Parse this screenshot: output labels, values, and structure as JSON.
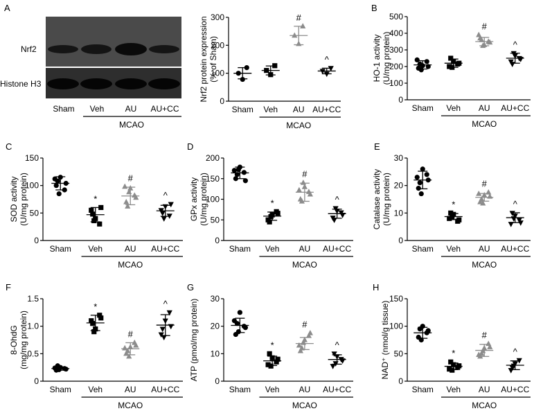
{
  "figure": {
    "western_blot": {
      "panel_letter": "A",
      "band_labels": [
        "Nrf2",
        "Histone H3"
      ],
      "lane_labels": [
        "Sham",
        "Veh",
        "AU",
        "AU+CC"
      ],
      "group_label": "MCAO"
    }
  },
  "colors": {
    "sham": "#000000",
    "veh": "#000000",
    "au": "#8c8c8c",
    "aucc": "#000000"
  },
  "chart_data": [
    {
      "id": "A2",
      "panel": "",
      "type": "scatter",
      "ylabel": "Nrf2 protein expression\n(% of Sham)",
      "ylim": [
        0,
        300
      ],
      "yticks": [
        0,
        100,
        200,
        300
      ],
      "categories": [
        "Sham",
        "Veh",
        "AU",
        "AU+CC"
      ],
      "group_label": "MCAO",
      "markers": [
        "circle",
        "square",
        "triangle-up",
        "triangle-down"
      ],
      "points": [
        [
          100,
          78,
          120
        ],
        [
          110,
          95,
          127
        ],
        [
          235,
          205,
          268
        ],
        [
          108,
          98,
          118
        ]
      ],
      "mean": [
        100,
        110,
        235,
        108
      ],
      "sd": [
        20,
        16,
        33,
        10
      ],
      "annotations": [
        "",
        "",
        "#",
        "^"
      ]
    },
    {
      "id": "B",
      "panel": "B",
      "type": "scatter",
      "ylabel": "HO-1 activity\n(U/mg protein)",
      "ylim": [
        0,
        500
      ],
      "yticks": [
        0,
        100,
        200,
        300,
        400,
        500
      ],
      "categories": [
        "Sham",
        "Veh",
        "AU",
        "AU+CC"
      ],
      "group_label": "MCAO",
      "markers": [
        "circle",
        "square",
        "triangle-up",
        "triangle-down"
      ],
      "points": [
        [
          190,
          205,
          230,
          215,
          180,
          200,
          240
        ],
        [
          200,
          230,
          215,
          250,
          195,
          220
        ],
        [
          370,
          330,
          350,
          360,
          325,
          345,
          390
        ],
        [
          230,
          265,
          250,
          215,
          280,
          245
        ]
      ],
      "mean": [
        210,
        220,
        350,
        250
      ],
      "sd": [
        25,
        25,
        25,
        30
      ],
      "annotations": [
        "",
        "",
        "#",
        "^"
      ]
    },
    {
      "id": "C",
      "panel": "C",
      "type": "scatter",
      "ylabel": "SOD activity\n(U/mg protein)",
      "ylim": [
        0,
        150
      ],
      "yticks": [
        0,
        50,
        100,
        150
      ],
      "categories": [
        "Sham",
        "Veh",
        "AU",
        "AU+CC"
      ],
      "group_label": "MCAO",
      "markers": [
        "circle",
        "square",
        "triangle-up",
        "triangle-down"
      ],
      "points": [
        [
          100,
          115,
          92,
          108,
          85,
          104,
          112
        ],
        [
          55,
          40,
          30,
          48,
          36,
          60
        ],
        [
          70,
          95,
          82,
          62,
          88,
          78,
          98
        ],
        [
          55,
          62,
          45,
          50,
          40,
          66
        ]
      ],
      "mean": [
        104,
        47,
        81,
        54
      ],
      "sd": [
        12,
        13,
        16,
        10
      ],
      "annotations": [
        "",
        "*",
        "#",
        "^"
      ]
    },
    {
      "id": "D",
      "panel": "D",
      "type": "scatter",
      "ylabel": "GPx activity\n(U/mg protein)",
      "ylim": [
        0,
        200
      ],
      "yticks": [
        0,
        50,
        100,
        150,
        200
      ],
      "categories": [
        "Sham",
        "Veh",
        "AU",
        "AU+CC"
      ],
      "group_label": "MCAO",
      "markers": [
        "circle",
        "square",
        "triangle-up",
        "triangle-down"
      ],
      "points": [
        [
          150,
          178,
          165,
          160,
          172,
          145,
          170
        ],
        [
          50,
          62,
          70,
          45,
          58,
          66
        ],
        [
          100,
          130,
          118,
          95,
          140,
          112,
          122
        ],
        [
          55,
          72,
          68,
          50,
          78,
          62
        ]
      ],
      "mean": [
        164,
        59,
        117,
        65
      ],
      "sd": [
        14,
        10,
        22,
        11
      ],
      "annotations": [
        "",
        "*",
        "#",
        "^"
      ]
    },
    {
      "id": "E",
      "panel": "E",
      "type": "scatter",
      "ylabel": "Catalase activity\n(U/mg protein)",
      "ylim": [
        0,
        30
      ],
      "yticks": [
        0,
        10,
        20,
        30
      ],
      "categories": [
        "Sham",
        "Veh",
        "AU",
        "AU+CC"
      ],
      "group_label": "MCAO",
      "markers": [
        "circle",
        "square",
        "triangle-up",
        "triangle-down"
      ],
      "points": [
        [
          19,
          26,
          24,
          21,
          17,
          22,
          23
        ],
        [
          8,
          9.5,
          7,
          10,
          8.5,
          7.5
        ],
        [
          14,
          16.5,
          17.5,
          15,
          13.5,
          16,
          17
        ],
        [
          6,
          9,
          7.5,
          10,
          8,
          6.5
        ]
      ],
      "mean": [
        22,
        8.7,
        15.7,
        8.3
      ],
      "sd": [
        3.2,
        1.1,
        1.4,
        1.8
      ],
      "annotations": [
        "",
        "*",
        "#",
        "^"
      ]
    },
    {
      "id": "F",
      "panel": "F",
      "type": "scatter",
      "ylabel": "8-OhdG\n(mg/mg protein)",
      "ylim": [
        0,
        1.5
      ],
      "yticks": [
        0,
        0.5,
        1.0,
        1.5
      ],
      "ytick_labels": [
        "0",
        "0.5",
        "1.0",
        "1.5"
      ],
      "categories": [
        "Sham",
        "Veh",
        "AU",
        "AU+CC"
      ],
      "group_label": "MCAO",
      "markers": [
        "circle",
        "square",
        "triangle-up",
        "triangle-down"
      ],
      "points": [
        [
          0.2,
          0.25,
          0.23,
          0.28,
          0.21,
          0.22,
          0.24
        ],
        [
          1.1,
          0.95,
          1.2,
          1.05,
          0.9,
          1.15
        ],
        [
          0.5,
          0.62,
          0.7,
          0.55,
          0.45,
          0.65,
          0.6
        ],
        [
          0.85,
          1.1,
          1.25,
          0.95,
          0.8,
          1.0
        ]
      ],
      "mean": [
        0.23,
        1.06,
        0.59,
        1.02
      ],
      "sd": [
        0.03,
        0.14,
        0.11,
        0.19
      ],
      "annotations": [
        "",
        "*",
        "#",
        "^"
      ]
    },
    {
      "id": "G",
      "panel": "G",
      "type": "scatter",
      "ylabel": "ATP (pmol/mg protein)",
      "ylim": [
        0,
        30
      ],
      "yticks": [
        0,
        10,
        20,
        30
      ],
      "categories": [
        "Sham",
        "Veh",
        "AU",
        "AU+CC"
      ],
      "group_label": "MCAO",
      "markers": [
        "circle",
        "square",
        "triangle-up",
        "triangle-down"
      ],
      "points": [
        [
          17,
          25,
          20,
          21,
          18,
          19.5,
          22
        ],
        [
          6,
          8.5,
          7,
          10,
          5.5,
          8
        ],
        [
          11,
          15,
          16.5,
          12,
          14,
          17.5,
          13
        ],
        [
          5.5,
          9,
          8,
          10,
          6.5,
          7.5
        ]
      ],
      "mean": [
        20.3,
        7.4,
        13.7,
        7.9
      ],
      "sd": [
        2.6,
        1.7,
        2.2,
        1.7
      ],
      "annotations": [
        "",
        "*",
        "#",
        "^"
      ]
    },
    {
      "id": "H",
      "panel": "H",
      "type": "scatter",
      "ylabel": "NAD⁺ (nmol/g tissue)",
      "ylim": [
        0,
        150
      ],
      "yticks": [
        0,
        50,
        100,
        150
      ],
      "categories": [
        "Sham",
        "Veh",
        "AU",
        "AU+CC"
      ],
      "group_label": "MCAO",
      "markers": [
        "circle",
        "square",
        "triangle-up",
        "triangle-down"
      ],
      "points": [
        [
          80,
          100,
          88,
          95,
          75,
          92
        ],
        [
          22,
          30,
          25,
          35,
          20,
          28
        ],
        [
          45,
          60,
          68,
          50,
          55,
          62,
          48
        ],
        [
          20,
          32,
          38,
          25,
          28
        ]
      ],
      "mean": [
        88,
        27,
        56,
        29
      ],
      "sd": [
        10,
        6,
        11,
        8
      ],
      "annotations": [
        "",
        "*",
        "#",
        "^"
      ]
    }
  ]
}
